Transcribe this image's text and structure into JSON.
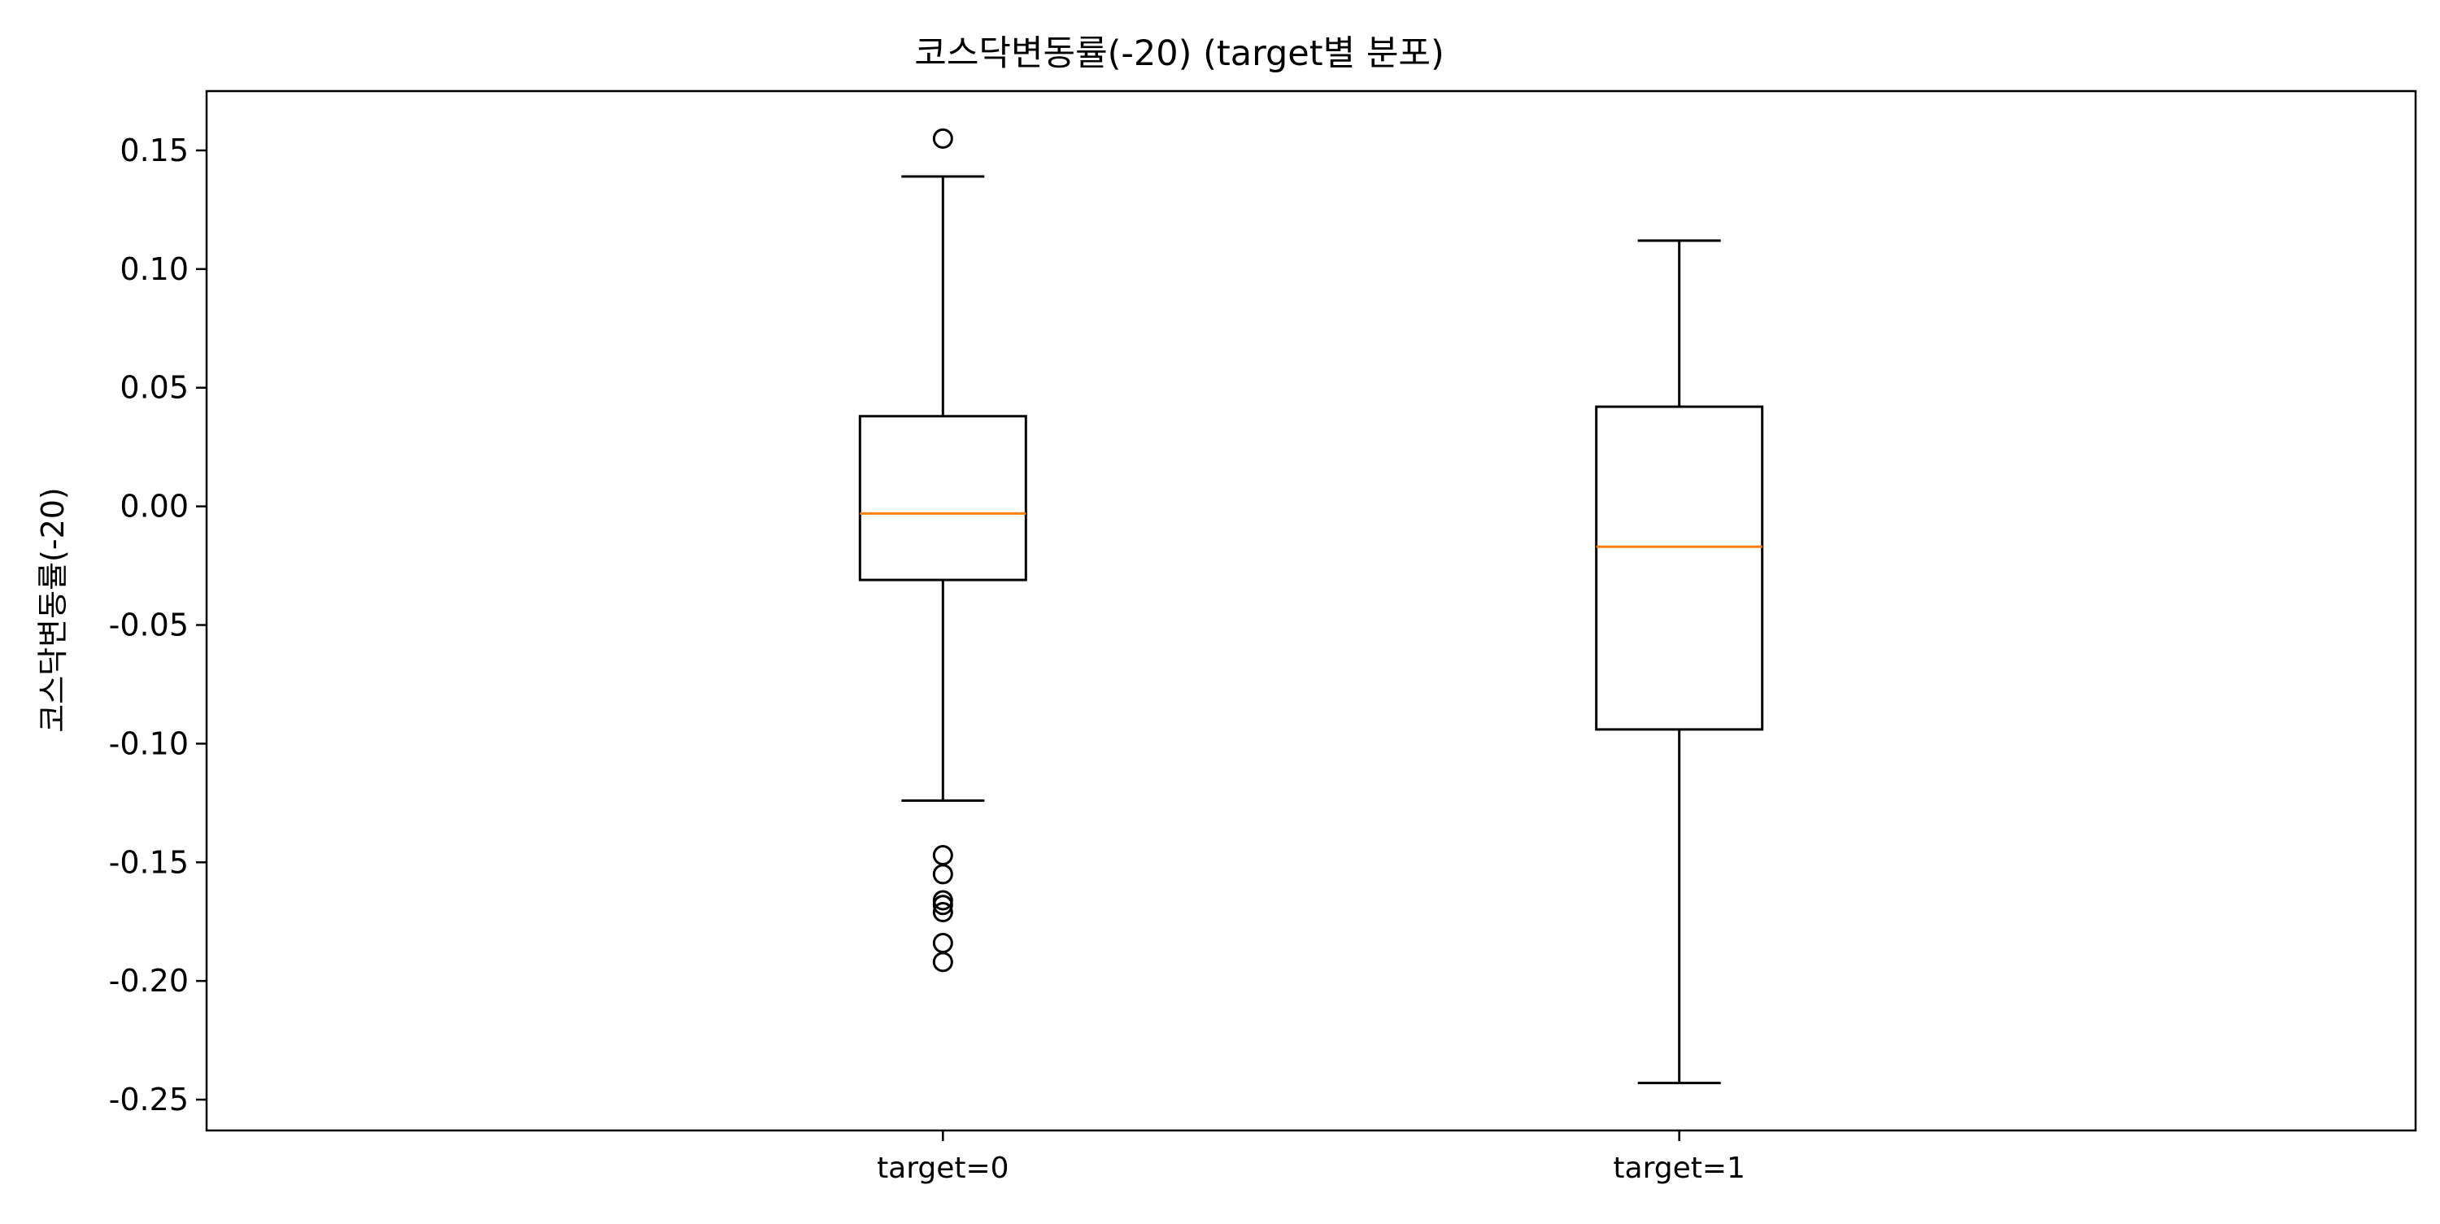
{
  "chart_data": {
    "type": "box",
    "title": "코스닥변동률(-20) (target별 분포)",
    "xlabel": "",
    "ylabel": "코스닥변동률(-20)",
    "ylim": [
      -0.263,
      0.175
    ],
    "yticks": [
      0.15,
      0.1,
      0.05,
      0.0,
      -0.05,
      -0.1,
      -0.15,
      -0.2,
      -0.25
    ],
    "ytick_labels": [
      "0.15",
      "0.10",
      "0.05",
      "0.00",
      "-0.05",
      "-0.10",
      "-0.15",
      "-0.20",
      "-0.25"
    ],
    "categories": [
      "target=0",
      "target=1"
    ],
    "boxes": [
      {
        "label": "target=0",
        "whisker_low": -0.124,
        "q1": -0.031,
        "median": -0.003,
        "q3": 0.038,
        "whisker_high": 0.139,
        "outliers": [
          0.155,
          -0.147,
          -0.155,
          -0.166,
          -0.168,
          -0.171,
          -0.184,
          -0.192
        ]
      },
      {
        "label": "target=1",
        "whisker_low": -0.243,
        "q1": -0.094,
        "median": -0.017,
        "q3": 0.042,
        "whisker_high": 0.112,
        "outliers": []
      }
    ],
    "grid": false,
    "colors": {
      "box": "#000000",
      "median": "#ff7f0e",
      "outlier": "#000000"
    }
  }
}
